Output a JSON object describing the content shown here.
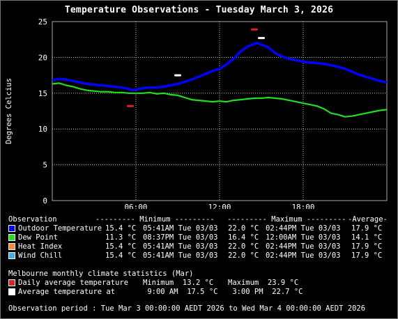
{
  "chart_data": {
    "type": "line",
    "title": "Temperature Observations - Tuesday March 3, 2026",
    "ylabel": "Degrees Celcius",
    "xlabel": "",
    "ylim": [
      0,
      25
    ],
    "xlim": [
      0,
      24
    ],
    "yticks": [
      0,
      5,
      10,
      15,
      20,
      25
    ],
    "xticks": [
      6,
      12,
      18
    ],
    "xtick_labels": [
      "06:00",
      "12:00",
      "18:00"
    ],
    "grid": true,
    "background": "#000000",
    "grid_color": "#b8d86b",
    "series": [
      {
        "name": "Outdoor Temperature",
        "color": "#0000ff",
        "x": [
          0,
          0.5,
          1,
          1.5,
          2,
          2.5,
          3,
          3.5,
          4,
          4.5,
          5,
          5.5,
          5.7,
          6,
          6.5,
          7,
          7.5,
          8,
          8.5,
          9,
          9.5,
          10,
          10.5,
          11,
          11.5,
          12,
          12.5,
          13,
          13.5,
          14,
          14.5,
          14.7,
          15,
          15.5,
          16,
          16.5,
          17,
          17.5,
          18,
          18.5,
          19,
          19.5,
          20,
          20.5,
          21,
          21.5,
          22,
          22.5,
          23,
          23.5,
          24
        ],
        "y": [
          16.8,
          17.0,
          16.9,
          16.7,
          16.5,
          16.3,
          16.2,
          16.1,
          16.0,
          15.9,
          15.8,
          15.6,
          15.4,
          15.5,
          15.7,
          15.8,
          15.8,
          15.9,
          16.1,
          16.3,
          16.6,
          16.9,
          17.3,
          17.7,
          18.1,
          18.4,
          19.0,
          19.8,
          20.8,
          21.5,
          21.9,
          22.0,
          21.8,
          21.4,
          20.6,
          20.1,
          19.8,
          19.6,
          19.4,
          19.3,
          19.2,
          19.1,
          18.9,
          18.7,
          18.4,
          18.0,
          17.6,
          17.3,
          17.0,
          16.7,
          16.5
        ]
      },
      {
        "name": "Dew Point",
        "color": "#22dd22",
        "x": [
          0,
          0.5,
          1,
          1.5,
          2,
          2.5,
          3,
          3.5,
          4,
          4.5,
          5,
          5.5,
          6,
          6.5,
          7,
          7.5,
          8,
          8.5,
          9,
          9.5,
          10,
          10.5,
          11,
          11.5,
          12,
          12.5,
          13,
          13.5,
          14,
          14.5,
          15,
          15.5,
          16,
          16.5,
          17,
          17.5,
          18,
          18.5,
          19,
          19.5,
          20,
          20.5,
          21,
          21.5,
          22,
          22.5,
          23,
          23.5,
          24
        ],
        "y": [
          16.3,
          16.4,
          16.1,
          15.9,
          15.6,
          15.4,
          15.3,
          15.2,
          15.2,
          15.1,
          15.1,
          15.0,
          15.0,
          15.0,
          15.1,
          14.9,
          15.0,
          14.8,
          14.7,
          14.4,
          14.1,
          14.0,
          13.9,
          13.8,
          13.9,
          13.8,
          14.0,
          14.1,
          14.2,
          14.3,
          14.3,
          14.4,
          14.3,
          14.2,
          14.0,
          13.8,
          13.6,
          13.4,
          13.2,
          12.8,
          12.2,
          12.0,
          11.7,
          11.8,
          12.0,
          12.2,
          12.4,
          12.6,
          12.7
        ]
      }
    ],
    "markers": [
      {
        "name": "Daily average temperature",
        "color": "#dd2222",
        "points": [
          {
            "x": 5.6,
            "y": 13.2
          },
          {
            "x": 14.5,
            "y": 23.9
          }
        ]
      },
      {
        "name": "Average temperature at",
        "color": "#ffffff",
        "points": [
          {
            "x": 9.0,
            "y": 17.5
          },
          {
            "x": 15.0,
            "y": 22.7
          }
        ]
      }
    ]
  },
  "summary": {
    "headers": {
      "observation": "Observation",
      "minimum": "--------- Minimum ---------",
      "maximum": "--------- Maximum ---------",
      "average": "-Average-"
    },
    "rows": [
      {
        "label": "Outdoor Temperature",
        "color": "#0000ff",
        "min": "15.4 °C",
        "min_time": "05:41AM Tue 03/03",
        "max": "22.0 °C",
        "max_time": "02:44PM Tue 03/03",
        "avg": "17.9 °C"
      },
      {
        "label": "Dew Point",
        "color": "#22dd22",
        "min": "11.3 °C",
        "min_time": "08:37PM Tue 03/03",
        "max": "16.4 °C",
        "max_time": "12:00AM Tue 03/03",
        "avg": "14.1 °C"
      },
      {
        "label": "Heat Index",
        "color": "#ff8833",
        "min": "15.4 °C",
        "min_time": "05:41AM Tue 03/03",
        "max": "22.0 °C",
        "max_time": "02:44PM Tue 03/03",
        "avg": "17.9 °C"
      },
      {
        "label": "Wind Chill",
        "color": "#44aaee",
        "min": "15.4 °C",
        "min_time": "05:41AM Tue 03/03",
        "max": "22.0 °C",
        "max_time": "02:44PM Tue 03/03",
        "avg": "17.9 °C"
      }
    ]
  },
  "climate": {
    "title": "Melbourne monthly climate statistics (Mar)",
    "rows": [
      {
        "label": "Daily average temperature",
        "color": "#dd2222",
        "a": "Minimum  13.2 °C",
        "b": "Maximum  23.9 °C"
      },
      {
        "label": "Average temperature at",
        "color": "#ffffff",
        "a": " 9:00 AM  17.5 °C",
        "b": " 3:00 PM  22.7 °C"
      }
    ]
  },
  "period": "Observation period : Tue Mar 3 00:00:00 AEDT 2026 to Wed Mar 4 00:00:00 AEDT 2026"
}
